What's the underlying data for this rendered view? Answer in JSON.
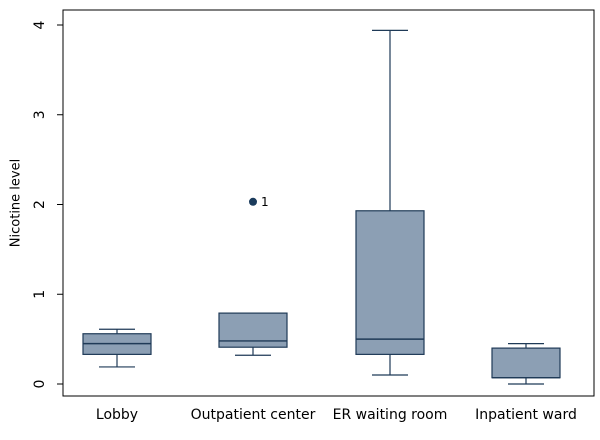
{
  "chart_data": {
    "type": "box",
    "title": "",
    "ylabel": "Nicotine level",
    "xlabel": "",
    "ylim": [
      0,
      4
    ],
    "yticks": [
      0,
      1,
      2,
      3,
      4
    ],
    "grid": false,
    "legend": "none",
    "colors": {
      "box_fill": "#8c9fb4",
      "box_stroke": "#1f3a57",
      "outlier": "#1a3b5c",
      "axis": "#000000"
    },
    "categories": [
      "Lobby",
      "Outpatient center",
      "ER waiting room",
      "Inpatient ward"
    ],
    "boxes": [
      {
        "category": "Lobby",
        "whisker_low": 0.19,
        "q1": 0.33,
        "median": 0.45,
        "q3": 0.56,
        "whisker_high": 0.61,
        "outliers": []
      },
      {
        "category": "Outpatient center",
        "whisker_low": 0.32,
        "q1": 0.41,
        "median": 0.48,
        "q3": 0.79,
        "whisker_high": 0.79,
        "outliers": [
          {
            "value": 2.03,
            "label": "1"
          }
        ]
      },
      {
        "category": "ER waiting room",
        "whisker_low": 0.1,
        "q1": 0.33,
        "median": 0.5,
        "q3": 1.93,
        "whisker_high": 3.94,
        "outliers": []
      },
      {
        "category": "Inpatient ward",
        "whisker_low": 0.0,
        "q1": 0.07,
        "median": 0.07,
        "q3": 0.4,
        "whisker_high": 0.45,
        "outliers": []
      }
    ]
  }
}
